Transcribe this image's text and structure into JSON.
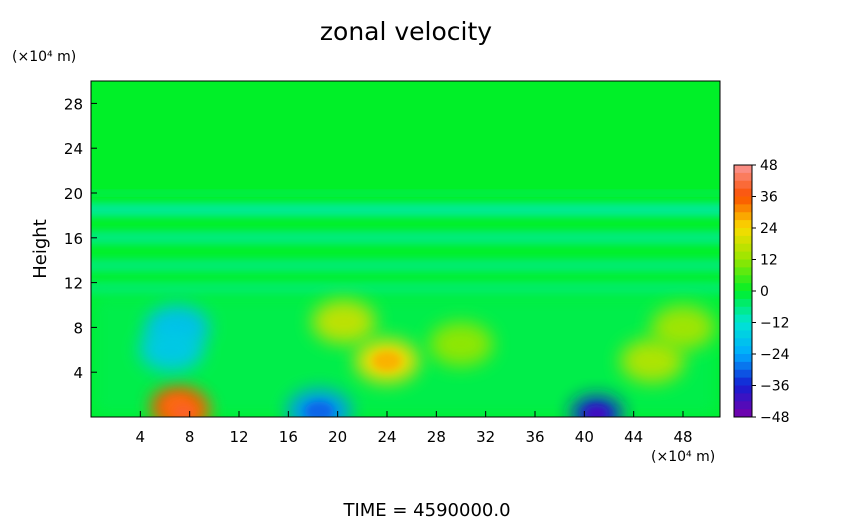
{
  "chart_data": {
    "type": "heatmap",
    "title": "zonal velocity",
    "ylabel": "Height",
    "y_unit": "(×10⁴ m)",
    "x_unit": "(×10⁴ m)",
    "footer": "TIME  =  4590000.0",
    "xlim": [
      0,
      51
    ],
    "ylim": [
      0,
      30
    ],
    "x_ticks": [
      4,
      8,
      12,
      16,
      20,
      24,
      28,
      32,
      36,
      40,
      44,
      48
    ],
    "x_tick_labels": [
      "4",
      "8",
      "12",
      "16",
      "20",
      "24",
      "28",
      "32",
      "36",
      "40",
      "44",
      "48"
    ],
    "y_ticks": [
      4,
      8,
      12,
      16,
      20,
      24,
      28
    ],
    "y_tick_labels": [
      "4",
      "8",
      "12",
      "16",
      "20",
      "24",
      "28"
    ],
    "colorbar": {
      "range": [
        -48,
        48
      ],
      "tick_values": [
        48,
        36,
        24,
        12,
        0,
        -12,
        -24,
        -36,
        -48
      ],
      "tick_labels": [
        "48",
        "36",
        "24",
        "12",
        "0",
        "−12",
        "−24",
        "−36",
        "−48"
      ]
    },
    "background_value": 0,
    "bands": [
      {
        "y": 20.0,
        "value": -5
      },
      {
        "y": 18.5,
        "value": -9
      },
      {
        "y": 16.0,
        "value": -7
      },
      {
        "y": 13.5,
        "value": -6
      },
      {
        "y": 11.5,
        "value": -5
      }
    ],
    "features": [
      {
        "x": 7.0,
        "y": 1.0,
        "value": 36
      },
      {
        "x": 7.5,
        "y": 0.5,
        "value": 34
      },
      {
        "x": 7.0,
        "y": 8.0,
        "value": -20
      },
      {
        "x": 6.5,
        "y": 6.0,
        "value": -18
      },
      {
        "x": 18.5,
        "y": 0.5,
        "value": -26
      },
      {
        "x": 41.0,
        "y": 0.3,
        "value": -36
      },
      {
        "x": 20.5,
        "y": 8.5,
        "value": 18
      },
      {
        "x": 24.0,
        "y": 5.0,
        "value": 24
      },
      {
        "x": 30.0,
        "y": 6.5,
        "value": 12
      },
      {
        "x": 45.5,
        "y": 5.0,
        "value": 16
      },
      {
        "x": 48.0,
        "y": 8.0,
        "value": 14
      }
    ]
  }
}
